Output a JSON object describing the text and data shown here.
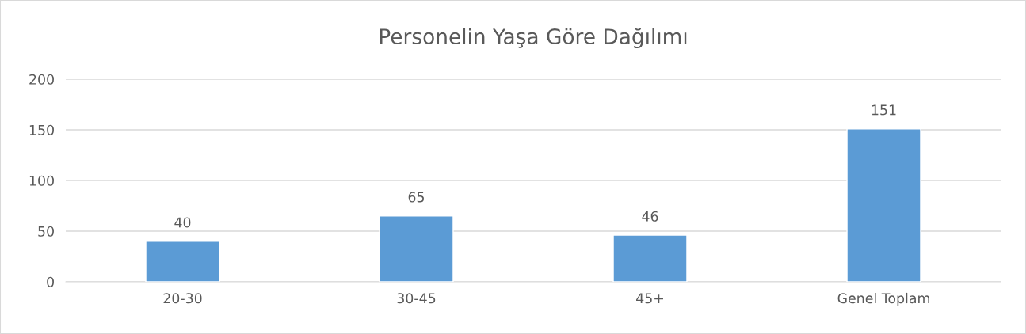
{
  "chart_data": {
    "type": "bar",
    "title": "Personelin Yaşa Göre Dağılımı",
    "categories": [
      "20-30",
      "30-45",
      "45+",
      "Genel Toplam"
    ],
    "values": [
      40,
      65,
      46,
      151
    ],
    "color": "#5b9bd5",
    "ylim": [
      0,
      200
    ],
    "yticks": [
      0,
      50,
      100,
      150,
      200
    ],
    "grid": "y",
    "data_labels": true
  }
}
